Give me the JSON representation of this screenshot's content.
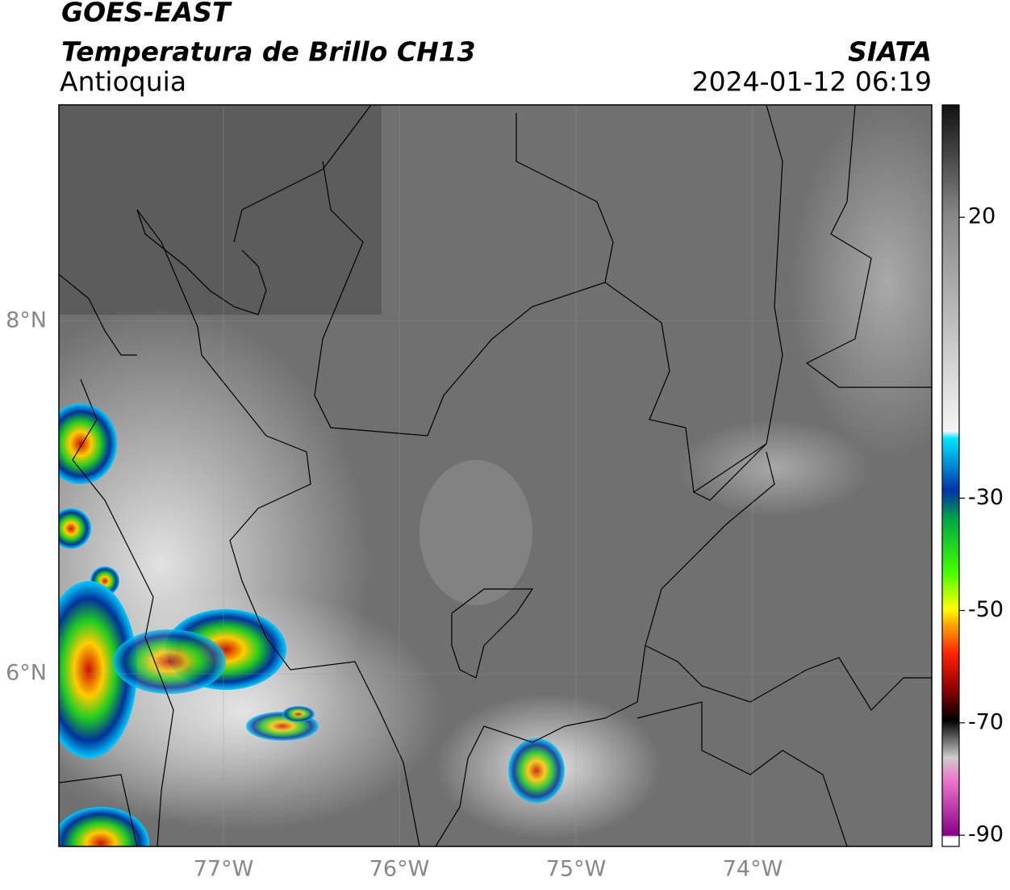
{
  "header": {
    "title": "GOES-EAST",
    "subtitle": "Temperatura de Brillo CH13",
    "region": "Antioquia",
    "source": "SIATA",
    "timestamp": "2024-01-12 06:19"
  },
  "map": {
    "lat_labels": [
      "8°N",
      "6°N"
    ],
    "lon_labels": [
      "77°W",
      "76°W",
      "75°W",
      "74°W"
    ]
  },
  "colorbar": {
    "lim": [
      -92,
      40
    ],
    "ticks": [
      20,
      -30,
      -50,
      -70,
      -90
    ]
  }
}
